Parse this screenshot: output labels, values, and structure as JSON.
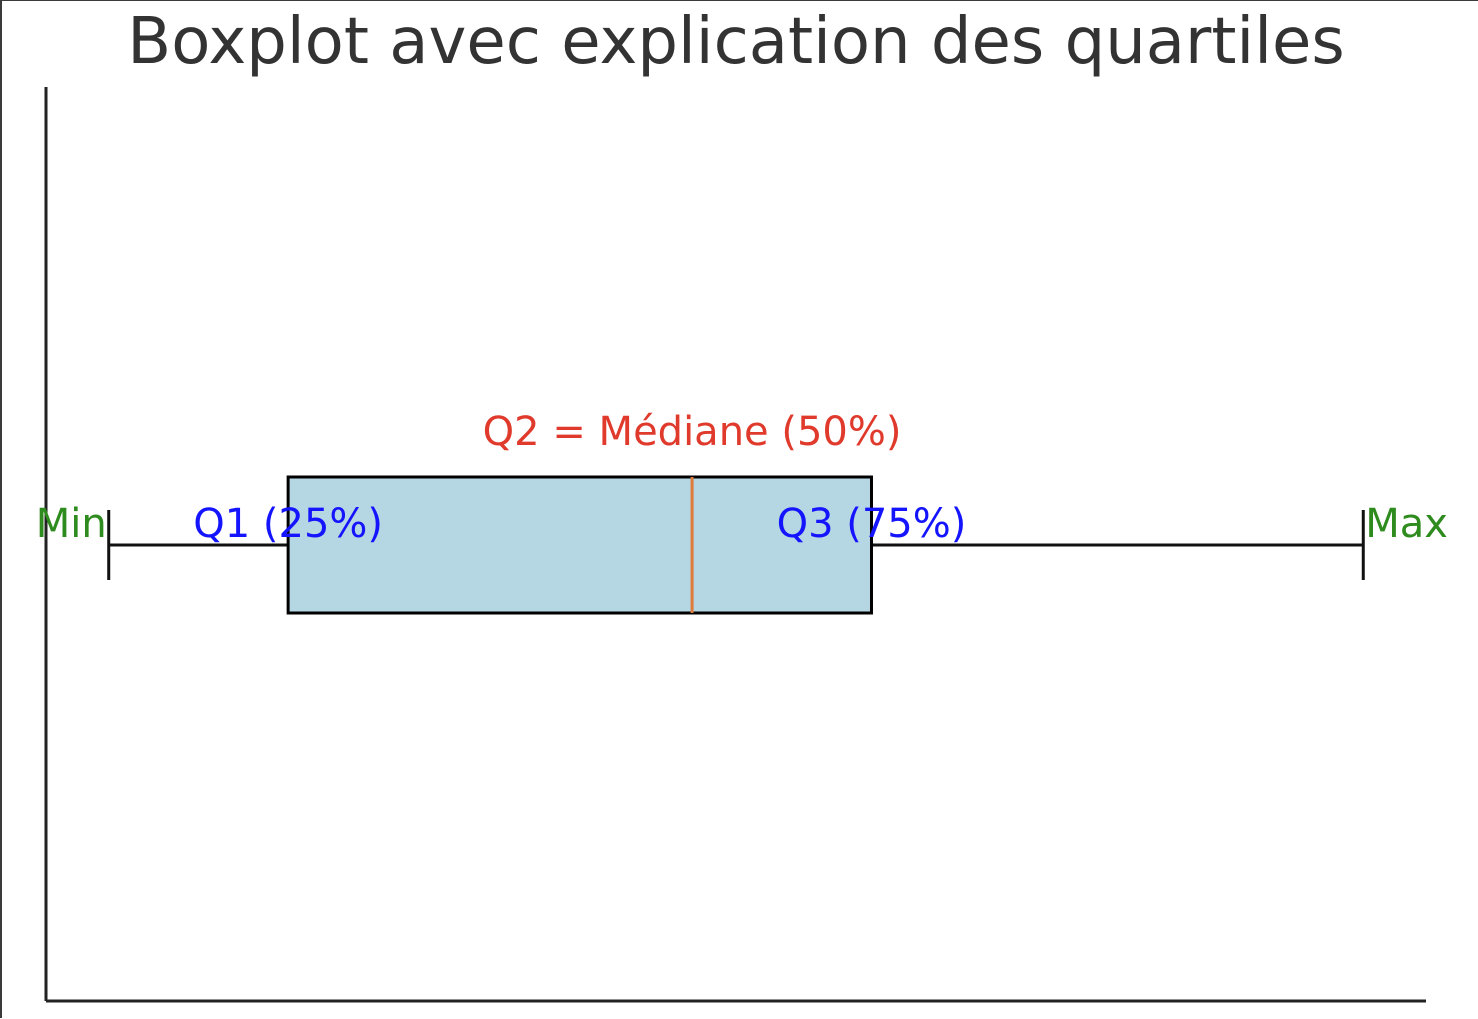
{
  "chart_data": {
    "type": "boxplot",
    "orientation": "horizontal",
    "title": "Boxplot avec explication des quartiles",
    "stats": {
      "min": 0.0,
      "q1": 14.3,
      "median": 46.5,
      "q3": 60.8,
      "max": 100.0
    },
    "xlim": [
      -5.0,
      105.0
    ],
    "annotations": {
      "min": "Min",
      "q1": "Q1 (25%)",
      "median": "Q2 = Médiane (50%)",
      "q3": "Q3 (75%)",
      "max": "Max"
    },
    "colors": {
      "box_fill": "#b5d6e3",
      "median_line": "#e07b39",
      "median_label": "#e03a2c",
      "quartile_label": "#1414ff",
      "minmax_label": "#2e8b1e",
      "title": "#333333",
      "outline": "#000000"
    },
    "axes_visible": {
      "left": true,
      "bottom": true,
      "top": false,
      "right": false
    },
    "ticks_visible": false,
    "grid": false
  }
}
